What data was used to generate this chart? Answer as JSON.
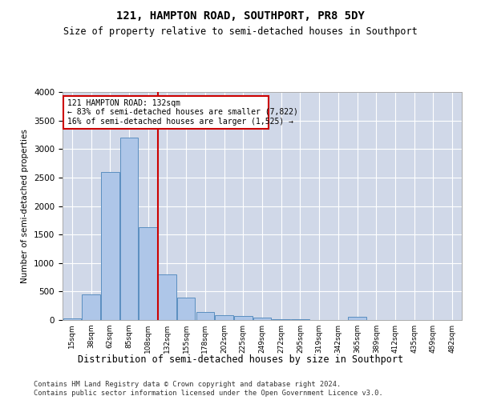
{
  "title1": "121, HAMPTON ROAD, SOUTHPORT, PR8 5DY",
  "title2": "Size of property relative to semi-detached houses in Southport",
  "xlabel": "Distribution of semi-detached houses by size in Southport",
  "ylabel": "Number of semi-detached properties",
  "footer1": "Contains HM Land Registry data © Crown copyright and database right 2024.",
  "footer2": "Contains public sector information licensed under the Open Government Licence v3.0.",
  "annotation_line1": "121 HAMPTON ROAD: 132sqm",
  "annotation_line2": "← 83% of semi-detached houses are smaller (7,822)",
  "annotation_line3": "16% of semi-detached houses are larger (1,525) →",
  "bin_labels": [
    "15sqm",
    "38sqm",
    "62sqm",
    "85sqm",
    "108sqm",
    "132sqm",
    "155sqm",
    "178sqm",
    "202sqm",
    "225sqm",
    "249sqm",
    "272sqm",
    "295sqm",
    "319sqm",
    "342sqm",
    "365sqm",
    "389sqm",
    "412sqm",
    "435sqm",
    "459sqm",
    "482sqm"
  ],
  "bar_values": [
    25,
    450,
    2600,
    3200,
    1625,
    800,
    400,
    145,
    80,
    70,
    45,
    15,
    10,
    5,
    5,
    50,
    5,
    5,
    5,
    5,
    0
  ],
  "bar_color": "#aec6e8",
  "bar_edge_color": "#5a8fc0",
  "vline_color": "#cc0000",
  "vline_x_index": 5,
  "annotation_box_color": "#cc0000",
  "background_color": "#ffffff",
  "grid_color": "#d0d8e8",
  "ylim": [
    0,
    4000
  ],
  "yticks": [
    0,
    500,
    1000,
    1500,
    2000,
    2500,
    3000,
    3500,
    4000
  ]
}
